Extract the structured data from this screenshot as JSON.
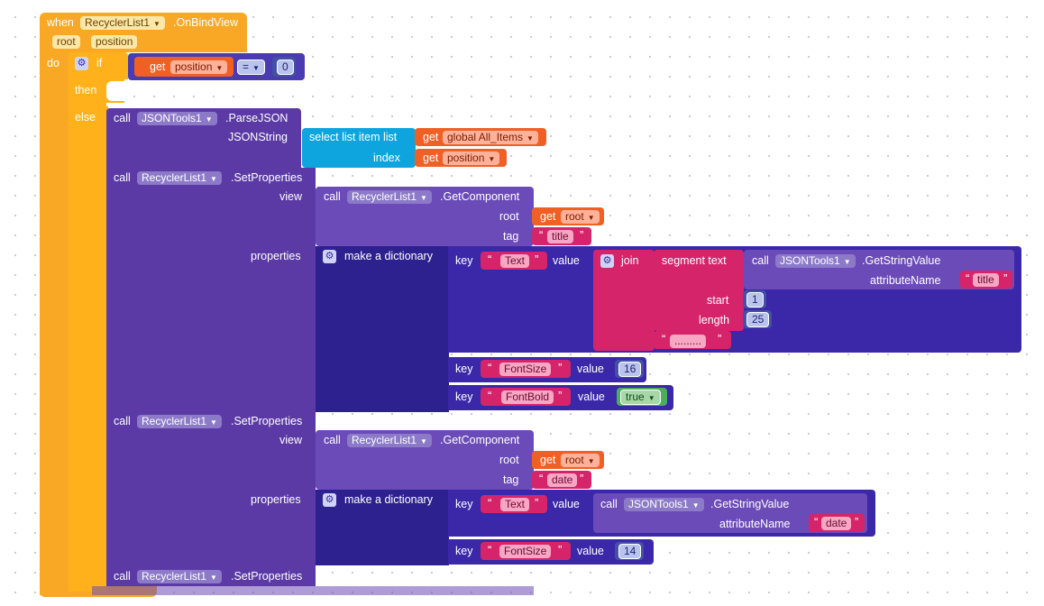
{
  "event": {
    "when": "when",
    "component": "RecyclerList1",
    "name": ".OnBindView",
    "params": [
      "root",
      "position"
    ],
    "do": "do"
  },
  "if_block": {
    "if": "if",
    "then": "then",
    "else": "else",
    "get": "get",
    "var": "position",
    "op": "=",
    "value": "0"
  },
  "parse": {
    "call": "call",
    "component": "JSONTools1",
    "method": ".ParseJSON",
    "arg": "JSONString",
    "select": "select list item  list",
    "index": "index",
    "get1": "get",
    "var1": "global All_Items",
    "get2": "get",
    "var2": "position"
  },
  "set1": {
    "call": "call",
    "component": "RecyclerList1",
    "method": ".SetProperties",
    "view": "view",
    "gc_call": "call",
    "gc_component": "RecyclerList1",
    "gc_method": ".GetComponent",
    "root": "root",
    "get": "get",
    "root_var": "root",
    "tag": "tag",
    "tag_value": "title",
    "properties": "properties",
    "make_dict": "make a dictionary",
    "key": "key",
    "value": "value",
    "key1": "Text",
    "join": "join",
    "segment": "segment  text",
    "gsv_call": "call",
    "gsv_component": "JSONTools1",
    "gsv_method": ".GetStringValue",
    "attr": "attributeName",
    "attr_value": "title",
    "start": "start",
    "start_value": "1",
    "length": "length",
    "length_value": "25",
    "ellipsis": ".........",
    "key2": "FontSize",
    "value2": "16",
    "key3": "FontBold",
    "value3": "true"
  },
  "set2": {
    "call": "call",
    "component": "RecyclerList1",
    "method": ".SetProperties",
    "view": "view",
    "gc_call": "call",
    "gc_component": "RecyclerList1",
    "gc_method": ".GetComponent",
    "root": "root",
    "get": "get",
    "root_var": "root",
    "tag": "tag",
    "tag_value": "date",
    "properties": "properties",
    "make_dict": "make a dictionary",
    "key": "key",
    "value": "value",
    "key1": "Text",
    "gsv_call": "call",
    "gsv_component": "JSONTools1",
    "gsv_method": ".GetStringValue",
    "attr": "attributeName",
    "attr_value": "date",
    "key2": "FontSize",
    "value2": "14"
  },
  "set3": {
    "call": "call",
    "component": "RecyclerList1",
    "method": ".SetProperties"
  },
  "colors": {
    "event": "#f9a825",
    "control": "#ffb11b",
    "component": "#5b3aa6",
    "dictionary": "#2d2190",
    "list": "#0ea5df",
    "variable": "#f06025",
    "text": "#d6246b",
    "math": "#4350a6",
    "logic": "#4cae58"
  }
}
